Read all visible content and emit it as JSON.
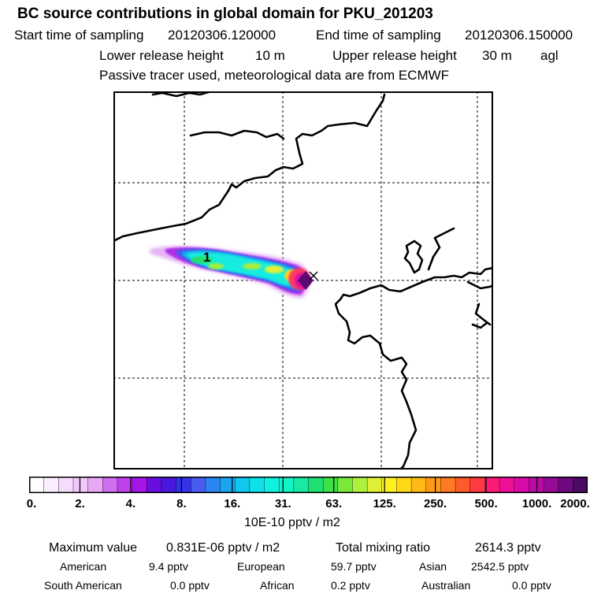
{
  "header": {
    "title": "BC  source contributions in global domain for PKU_201203",
    "start_label": "Start time of sampling",
    "start_value": "20120306.120000",
    "end_label": "End time of sampling",
    "end_value": "20120306.150000",
    "lower_label": "Lower release height",
    "lower_value": "10 m",
    "upper_label": "Upper release height",
    "upper_value": "30 m",
    "upper_suffix": "agl",
    "note": "Passive tracer used, meteorological data are from ECMWF"
  },
  "map": {
    "marker_label": "1",
    "source_marker": "x-icon"
  },
  "colorbar": {
    "ticks": [
      "0.",
      "2.",
      "4.",
      "8.",
      "16.",
      "31.",
      "63.",
      "125.",
      "250.",
      "500.",
      "1000.",
      "2000."
    ],
    "unit": "10E-10 pptv / m2",
    "colors": [
      "#ffffff",
      "#fbeefe",
      "#f6dcfc",
      "#f0c8fa",
      "#e8a8f6",
      "#cf6ff0",
      "#c040ee",
      "#a515e8",
      "#6a0ee0",
      "#4818dc",
      "#3333ea",
      "#4a5cf0",
      "#2a86f0",
      "#1aa6ee",
      "#10c8ee",
      "#0ee2e8",
      "#10f0e0",
      "#14f2c8",
      "#18eaa4",
      "#1ee070",
      "#3ee048",
      "#7ae83a",
      "#b0f03e",
      "#e0f038",
      "#fff020",
      "#ffd818",
      "#ffba16",
      "#ff9a18",
      "#ff7a22",
      "#ff5a2a",
      "#ff3a40",
      "#ff1a78",
      "#f01098",
      "#d80aa8",
      "#bc0aa4",
      "#960a96",
      "#6e0a80",
      "#4c0a62"
    ]
  },
  "footer": {
    "max_label": "Maximum value",
    "max_value": "0.831E-06 pptv / m2",
    "total_label": "Total mixing ratio",
    "total_value": "2614.3 pptv",
    "regions": [
      {
        "name": "American",
        "value": "9.4 pptv"
      },
      {
        "name": "European",
        "value": "59.7 pptv"
      },
      {
        "name": "Asian",
        "value": "2542.5 pptv"
      },
      {
        "name": "South American",
        "value": "0.0 pptv"
      },
      {
        "name": "African",
        "value": "0.2 pptv"
      },
      {
        "name": "Australian",
        "value": "0.0 pptv"
      }
    ]
  }
}
